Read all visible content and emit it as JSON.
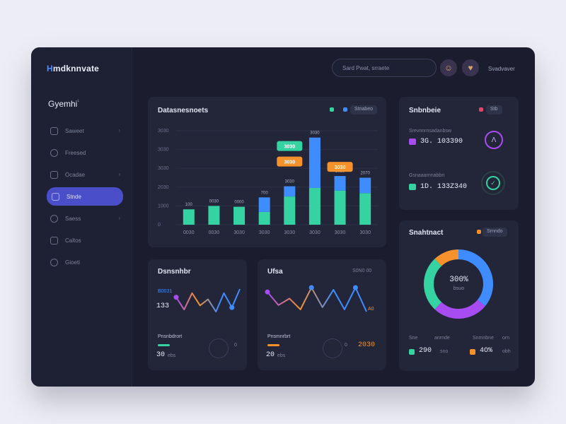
{
  "app": {
    "logo": "mdknnvate",
    "logo_mark": "H",
    "section_title": "Gyemhi",
    "section_sup": "¹"
  },
  "sidebar": {
    "items": [
      {
        "label": "Saweet",
        "icon": "calendar-icon",
        "chevron": "›"
      },
      {
        "label": "Freesed",
        "icon": "shield-icon",
        "chevron": ""
      },
      {
        "label": "Ocadae",
        "icon": "folder-icon",
        "chevron": "›"
      },
      {
        "label": "Stnde",
        "icon": "chart-icon",
        "chevron": "",
        "active": true
      },
      {
        "label": "Saess",
        "icon": "cloud-icon",
        "chevron": "›"
      },
      {
        "label": "Caltos",
        "icon": "printer-icon",
        "chevron": ""
      },
      {
        "label": "Gioeti",
        "icon": "bell-icon",
        "chevron": ""
      }
    ]
  },
  "topbar": {
    "search_placeholder": "Sard Pwat, srraete",
    "user_name": "Svadvaver",
    "avatar1": "☺",
    "avatar2": "♥"
  },
  "colors": {
    "green": "#35d3a1",
    "blue": "#3f8cff",
    "orange": "#f5922b",
    "purple": "#a64cf0",
    "accent": "#4a4fc9"
  },
  "main_chart": {
    "title": "Datasnesnoets",
    "legend_pill": "Stnabeo",
    "chart_data": {
      "type": "bar",
      "categories": [
        "0030",
        "0030",
        "3030",
        "3030",
        "3030",
        "3030",
        "3030",
        "3030"
      ],
      "y_ticks": [
        "3030",
        "3030",
        "3030",
        "2030",
        "1000",
        "0"
      ],
      "series": [
        {
          "values": [
            18,
            22,
            21,
            15,
            33,
            43,
            40,
            37
          ]
        },
        {
          "values": [
            0,
            0,
            0,
            17,
            12,
            59,
            17,
            18
          ]
        }
      ],
      "data_labels": [
        "100",
        "0030",
        "0000",
        "700",
        "3030",
        "3030",
        "3030",
        "2070"
      ],
      "tags": [
        {
          "text": "3030",
          "color": "#35d3a1",
          "bar": 4,
          "level": 1
        },
        {
          "text": "3030",
          "color": "#f5922b",
          "bar": 4,
          "level": 0
        },
        {
          "text": "3030",
          "color": "#f5922b",
          "bar": 6,
          "level": 0
        }
      ],
      "ylim": [
        0,
        110
      ]
    }
  },
  "stats_card": {
    "title": "Snbnbeie",
    "pill": "Stb",
    "rows": [
      {
        "label": "Srevnnrnsadanbsw",
        "value": "3G. 103390",
        "icon_color": "#a64cf0",
        "ring": "#a64cf0",
        "ring_glyph": "Λ"
      },
      {
        "label": "Gsnaaarnnabbn",
        "value": "1D. 133Z340",
        "icon_color": "#35d3a1",
        "ring": "#35d3a1",
        "ring_glyph": "✓"
      }
    ]
  },
  "donut_card": {
    "title": "Snahtnact",
    "pill": "Srnndo",
    "center_value": "300%",
    "center_sub": "bsuo",
    "chart_data": {
      "type": "pie",
      "values": [
        36,
        26,
        26,
        12
      ],
      "colors": [
        "#3f8cff",
        "#a64cf0",
        "#35d3a1",
        "#f5922b"
      ]
    },
    "legend": [
      {
        "label": "Sne",
        "value": "290",
        "suffix": "sno",
        "color": "#35d3a1"
      },
      {
        "label": "Snmnbne",
        "value": "4O%",
        "suffix": "obh",
        "color": "#f5922b"
      }
    ],
    "legend_tails": [
      "anrnde",
      "orn"
    ]
  },
  "line_card_1": {
    "title": "Dsnsnhbr",
    "highlight_label": "B0031",
    "value": "133",
    "chart_data": {
      "type": "line",
      "series": [
        {
          "values": [
            10,
            4,
            12,
            6,
            9,
            3,
            12,
            5,
            14
          ],
          "color_from": "#a64cf0",
          "color_to": "#3f8cff"
        }
      ]
    },
    "bottom_label": "Pnsnbdrort",
    "bottom_value": "30",
    "bottom_suffix": "ebs",
    "bottom_right": "0"
  },
  "line_card_2": {
    "title": "Ufsa",
    "top_right": "S0N0 00",
    "end_label": "A0",
    "chart_data": {
      "type": "line",
      "series": [
        {
          "values": [
            12,
            6,
            9,
            4,
            14,
            5,
            13,
            4,
            14,
            3
          ],
          "color_from": "#a64cf0",
          "color_to": "#3f8cff"
        }
      ]
    },
    "bottom_label": "Pnsmnrbrt",
    "bottom_value": "20",
    "bottom_suffix": "ebs",
    "bottom_right": "2030",
    "bottom_mid": "0"
  }
}
